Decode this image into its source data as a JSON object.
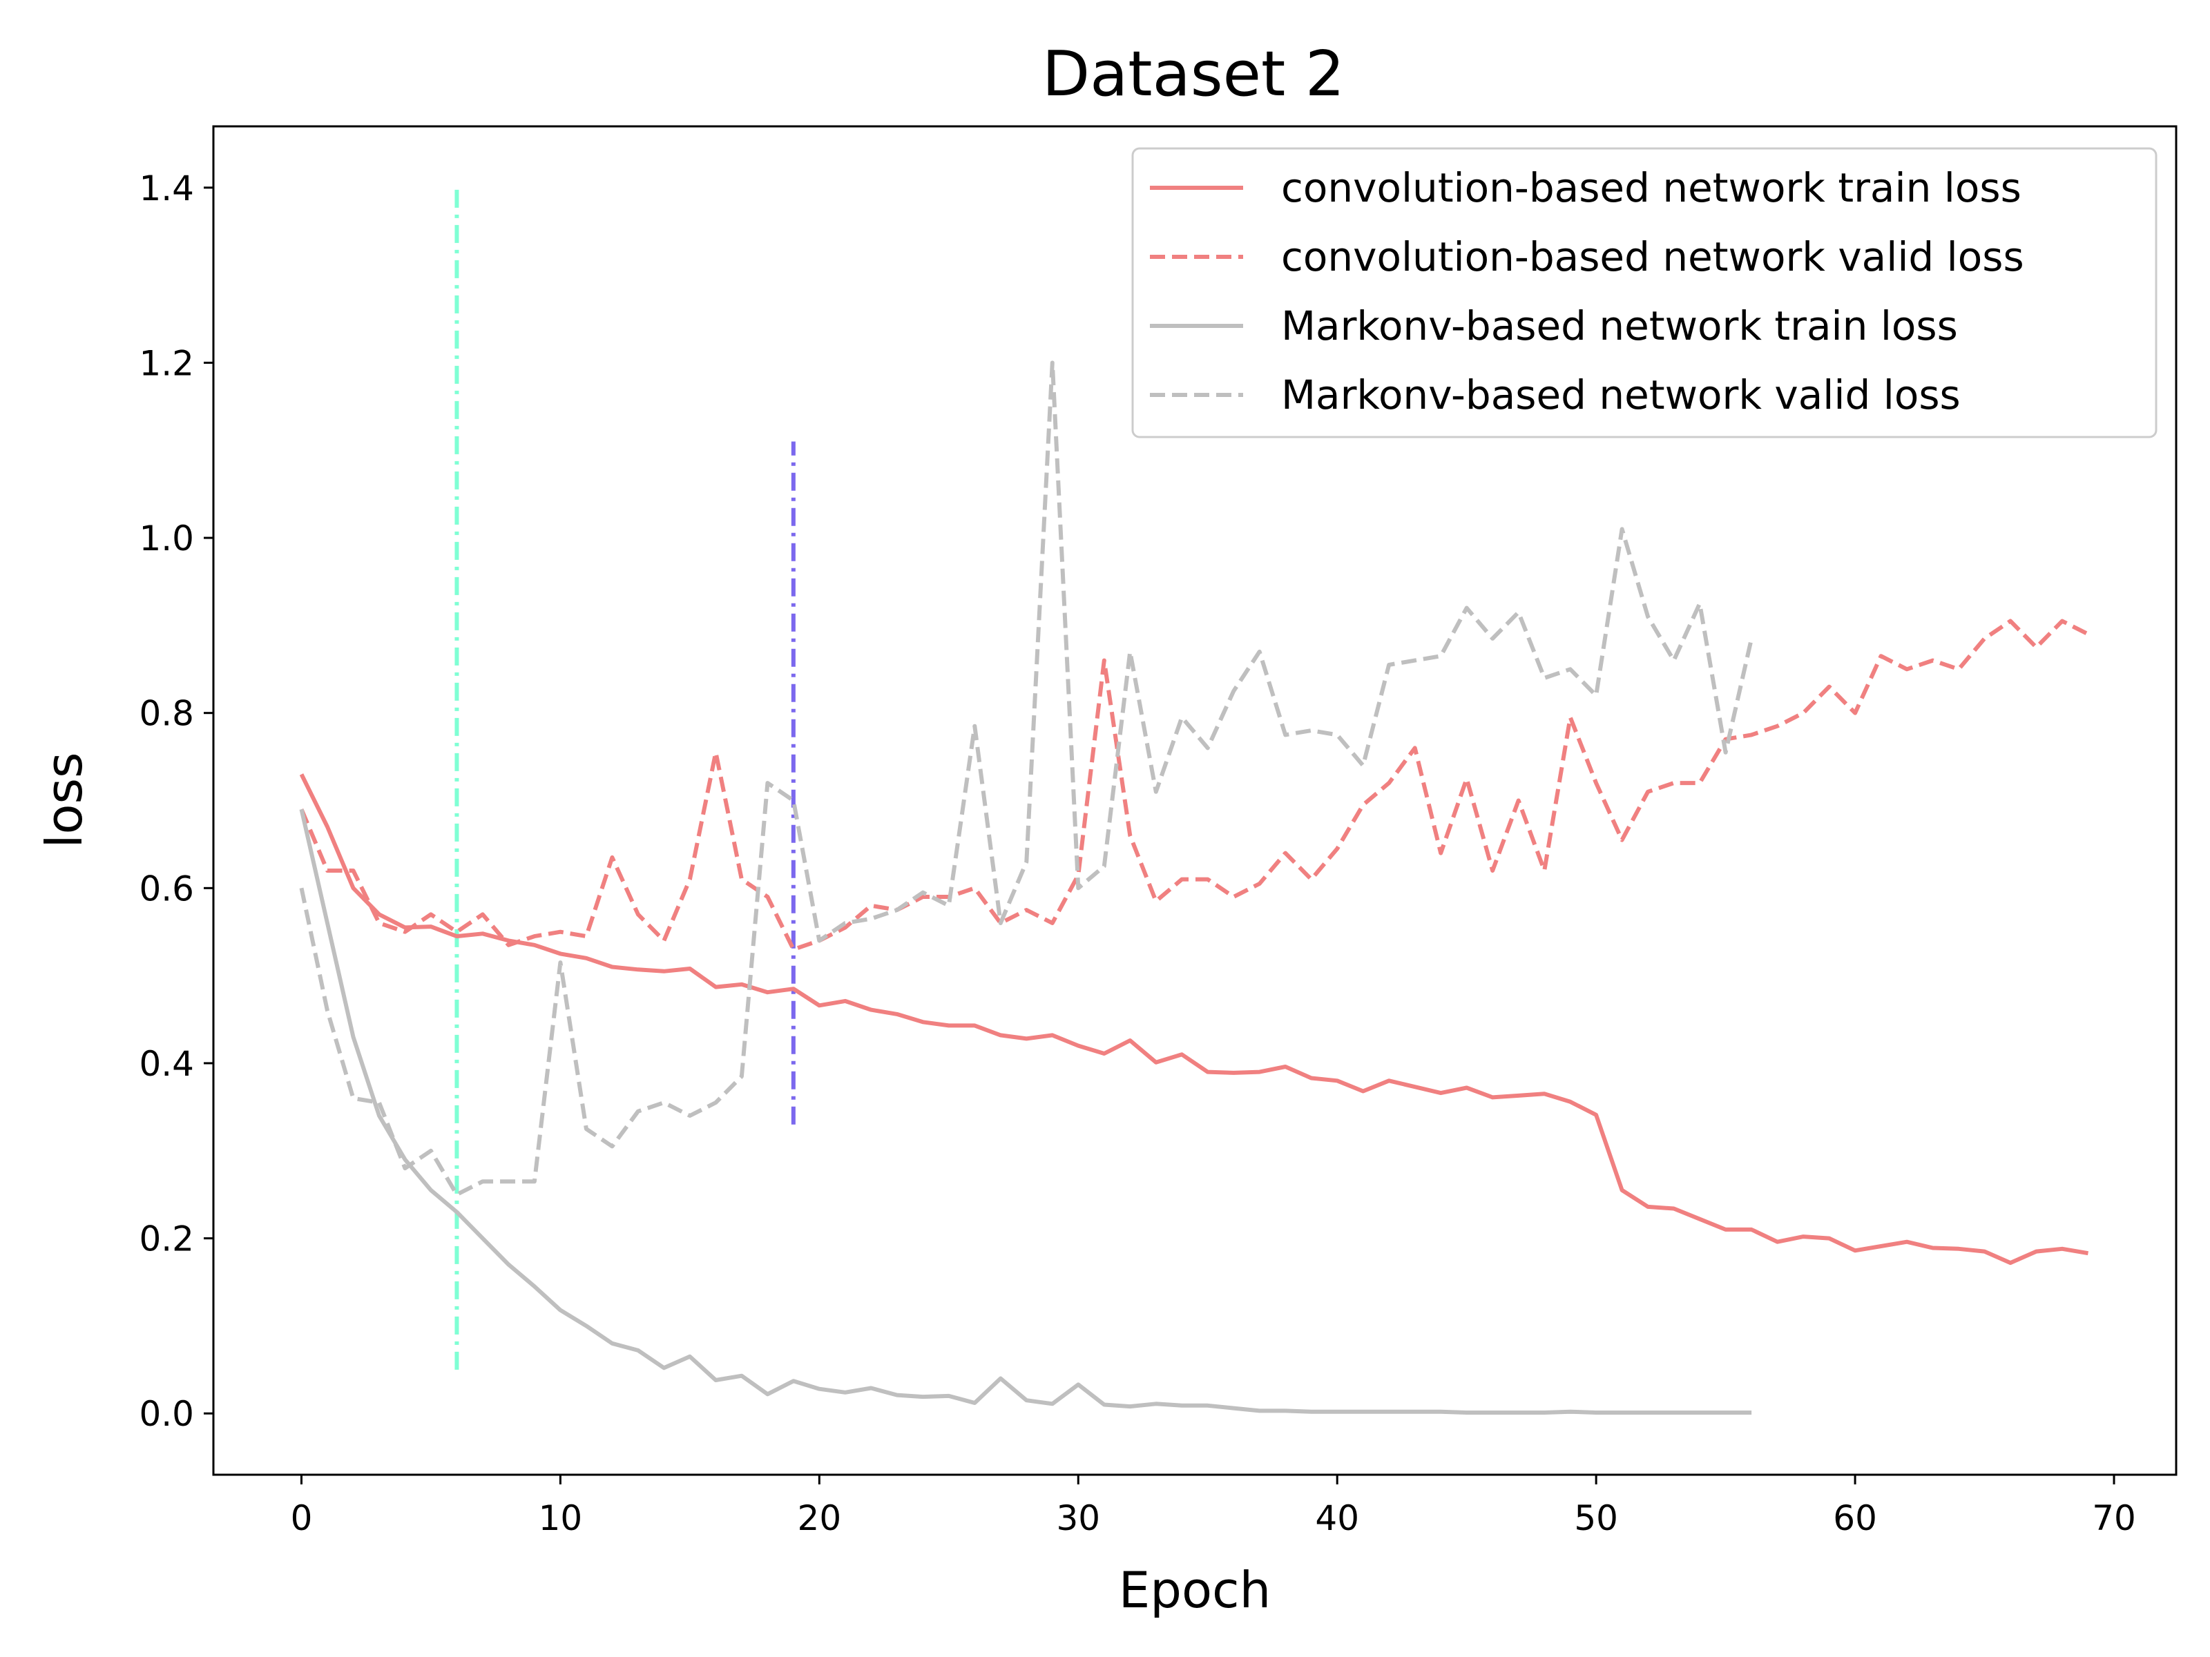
{
  "chart_data": {
    "type": "line",
    "title": "Dataset 2",
    "xlabel": "Epoch",
    "ylabel": "loss",
    "xlim": [
      -3.4,
      72.4
    ],
    "ylim": [
      -0.07,
      1.47
    ],
    "xticks": [
      0,
      10,
      20,
      30,
      40,
      50,
      60,
      70
    ],
    "yticks": [
      0.0,
      0.2,
      0.4,
      0.6,
      0.8,
      1.0,
      1.2,
      1.4
    ],
    "xtick_labels": [
      "0",
      "10",
      "20",
      "30",
      "40",
      "50",
      "60",
      "70"
    ],
    "ytick_labels": [
      "0.0",
      "0.2",
      "0.4",
      "0.6",
      "0.8",
      "1.0",
      "1.2",
      "1.4"
    ],
    "grid": false,
    "legend_position": "top-right",
    "series": [
      {
        "name": "convolution-based network train loss",
        "color": "#F08080",
        "style": "solid",
        "x": [
          0,
          1,
          2,
          3,
          4,
          5,
          6,
          7,
          8,
          9,
          10,
          11,
          12,
          13,
          14,
          15,
          16,
          17,
          18,
          19,
          20,
          21,
          22,
          23,
          24,
          25,
          26,
          27,
          28,
          29,
          30,
          31,
          32,
          33,
          34,
          35,
          36,
          37,
          38,
          39,
          40,
          41,
          42,
          43,
          44,
          45,
          46,
          47,
          48,
          49,
          50,
          51,
          52,
          53,
          54,
          55,
          56,
          57,
          58,
          59,
          60,
          61,
          62,
          63,
          64,
          65,
          66,
          67,
          68,
          69
        ],
        "values": [
          0.73,
          0.67,
          0.6,
          0.57,
          0.555,
          0.556,
          0.545,
          0.548,
          0.54,
          0.535,
          0.525,
          0.52,
          0.51,
          0.507,
          0.505,
          0.508,
          0.487,
          0.49,
          0.481,
          0.485,
          0.466,
          0.471,
          0.461,
          0.456,
          0.447,
          0.443,
          0.443,
          0.432,
          0.428,
          0.432,
          0.42,
          0.411,
          0.426,
          0.401,
          0.41,
          0.39,
          0.389,
          0.39,
          0.396,
          0.383,
          0.38,
          0.368,
          0.38,
          0.373,
          0.366,
          0.372,
          0.361,
          0.363,
          0.365,
          0.356,
          0.341,
          0.255,
          0.236,
          0.234,
          0.222,
          0.21,
          0.21,
          0.196,
          0.202,
          0.2,
          0.186,
          0.191,
          0.196,
          0.189,
          0.188,
          0.185,
          0.172,
          0.185,
          0.188,
          0.183
        ]
      },
      {
        "name": "convolution-based network valid loss",
        "color": "#F08080",
        "style": "dashed",
        "x": [
          0,
          1,
          2,
          3,
          4,
          5,
          6,
          7,
          8,
          9,
          10,
          11,
          12,
          13,
          14,
          15,
          16,
          17,
          18,
          19,
          20,
          21,
          22,
          23,
          24,
          25,
          26,
          27,
          28,
          29,
          30,
          31,
          32,
          33,
          34,
          35,
          36,
          37,
          38,
          39,
          40,
          41,
          42,
          43,
          44,
          45,
          46,
          47,
          48,
          49,
          50,
          51,
          52,
          53,
          54,
          55,
          56,
          57,
          58,
          59,
          60,
          61,
          62,
          63,
          64,
          65,
          66,
          67,
          68,
          69
        ],
        "values": [
          0.69,
          0.62,
          0.62,
          0.56,
          0.55,
          0.57,
          0.55,
          0.57,
          0.535,
          0.545,
          0.55,
          0.545,
          0.635,
          0.57,
          0.54,
          0.61,
          0.755,
          0.61,
          0.59,
          0.53,
          0.54,
          0.555,
          0.58,
          0.575,
          0.59,
          0.59,
          0.6,
          0.56,
          0.575,
          0.56,
          0.615,
          0.86,
          0.66,
          0.585,
          0.61,
          0.61,
          0.59,
          0.605,
          0.64,
          0.61,
          0.645,
          0.695,
          0.72,
          0.76,
          0.64,
          0.725,
          0.62,
          0.7,
          0.62,
          0.795,
          0.72,
          0.655,
          0.71,
          0.72,
          0.72,
          0.77,
          0.775,
          0.785,
          0.8,
          0.83,
          0.8,
          0.865,
          0.85,
          0.86,
          0.85,
          0.885,
          0.905,
          0.875,
          0.905,
          0.89
        ]
      },
      {
        "name": "Markonv-based network train loss",
        "color": "#BFBFBF",
        "style": "solid",
        "x": [
          0,
          1,
          2,
          3,
          4,
          5,
          6,
          7,
          8,
          9,
          10,
          11,
          12,
          13,
          14,
          15,
          16,
          17,
          18,
          19,
          20,
          21,
          22,
          23,
          24,
          25,
          26,
          27,
          28,
          29,
          30,
          31,
          32,
          33,
          34,
          35,
          36,
          37,
          38,
          39,
          40,
          41,
          42,
          43,
          44,
          45,
          46,
          47,
          48,
          49,
          50,
          51,
          52,
          53,
          54,
          55,
          56
        ],
        "values": [
          0.69,
          0.56,
          0.43,
          0.34,
          0.29,
          0.255,
          0.23,
          0.2,
          0.17,
          0.145,
          0.118,
          0.1,
          0.08,
          0.072,
          0.052,
          0.065,
          0.038,
          0.043,
          0.022,
          0.037,
          0.028,
          0.024,
          0.029,
          0.021,
          0.019,
          0.02,
          0.012,
          0.04,
          0.015,
          0.011,
          0.033,
          0.01,
          0.008,
          0.011,
          0.009,
          0.009,
          0.006,
          0.003,
          0.003,
          0.002,
          0.002,
          0.002,
          0.002,
          0.002,
          0.002,
          0.001,
          0.001,
          0.001,
          0.001,
          0.002,
          0.001,
          0.001,
          0.001,
          0.001,
          0.001,
          0.001,
          0.001
        ]
      },
      {
        "name": "Markonv-based network valid loss",
        "color": "#BFBFBF",
        "style": "dashed",
        "x": [
          0,
          1,
          2,
          3,
          4,
          5,
          6,
          7,
          8,
          9,
          10,
          11,
          12,
          13,
          14,
          15,
          16,
          17,
          18,
          19,
          20,
          21,
          22,
          23,
          24,
          25,
          26,
          27,
          28,
          29,
          30,
          31,
          32,
          33,
          34,
          35,
          36,
          37,
          38,
          39,
          40,
          41,
          42,
          43,
          44,
          45,
          46,
          47,
          48,
          49,
          50,
          51,
          52,
          53,
          54,
          55,
          56
        ],
        "values": [
          0.6,
          0.46,
          0.36,
          0.355,
          0.28,
          0.3,
          0.25,
          0.265,
          0.265,
          0.265,
          0.515,
          0.325,
          0.305,
          0.345,
          0.355,
          0.34,
          0.355,
          0.385,
          0.72,
          0.7,
          0.54,
          0.56,
          0.565,
          0.575,
          0.595,
          0.58,
          0.785,
          0.56,
          0.63,
          1.2,
          0.6,
          0.625,
          0.87,
          0.71,
          0.795,
          0.76,
          0.825,
          0.87,
          0.775,
          0.78,
          0.775,
          0.74,
          0.855,
          0.86,
          0.865,
          0.92,
          0.885,
          0.915,
          0.84,
          0.85,
          0.82,
          1.01,
          0.91,
          0.86,
          0.925,
          0.755,
          0.885
        ]
      }
    ],
    "vlines": [
      {
        "x": 6,
        "ymin": 0.05,
        "ymax": 1.4,
        "color": "#7FFFD4",
        "style": "dashdot"
      },
      {
        "x": 19,
        "ymin": 0.33,
        "ymax": 1.11,
        "color": "#7B68EE",
        "style": "dashdot"
      }
    ]
  }
}
